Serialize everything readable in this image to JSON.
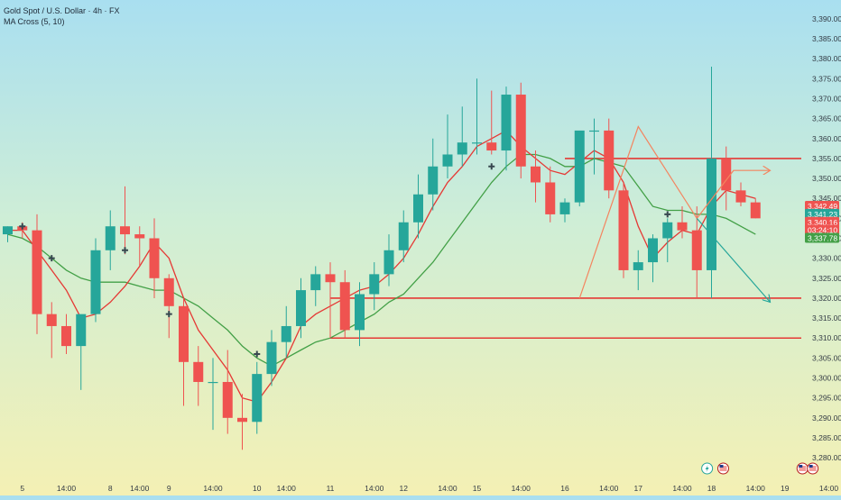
{
  "header": {
    "symbol_line": "Gold Spot / U.S. Dollar · 4h · FX",
    "indicator_line": "MA Cross (5, 10)"
  },
  "colors": {
    "bull": "#26a69a",
    "bear": "#ef5350",
    "ma_fast": "#e53935",
    "ma_slow": "#43a047",
    "level_line": "#e53935",
    "projection_up": "#f4845f",
    "projection_down": "#26a69a",
    "cross_marker": "#37474f",
    "axis_text": "#333b45"
  },
  "chart_data": {
    "type": "candlestick",
    "title": "Gold Spot / U.S. Dollar · 4h · FX",
    "indicator": "MA Cross (5, 10)",
    "ylim": [
      3278,
      3392
    ],
    "grid": false,
    "y_ticks": [
      3390,
      3385,
      3380,
      3375,
      3370,
      3365,
      3360,
      3355,
      3350,
      3345,
      3340,
      3335,
      3330,
      3325,
      3320,
      3315,
      3310,
      3305,
      3300,
      3295,
      3290,
      3285,
      3280
    ],
    "y_tick_labels": [
      "3,390.00",
      "3,385.00",
      "3,380.00",
      "3,375.00",
      "3,370.00",
      "3,365.00",
      "3,360.00",
      "3,355.00",
      "3,350.00",
      "3,345.00",
      "3,340.00",
      "3,335.00",
      "3,330.00",
      "3,325.00",
      "3,320.00",
      "3,315.00",
      "3,310.00",
      "3,305.00",
      "3,300.00",
      "3,295.00",
      "3,290.00",
      "3,285.00",
      "3,280.00"
    ],
    "x_labels": [
      {
        "i": 1,
        "label": "5"
      },
      {
        "i": 4,
        "label": "14:00"
      },
      {
        "i": 7,
        "label": "8"
      },
      {
        "i": 9,
        "label": "14:00"
      },
      {
        "i": 11,
        "label": "9"
      },
      {
        "i": 14,
        "label": "14:00"
      },
      {
        "i": 17,
        "label": "10"
      },
      {
        "i": 19,
        "label": "14:00"
      },
      {
        "i": 22,
        "label": "11"
      },
      {
        "i": 25,
        "label": "14:00"
      },
      {
        "i": 27,
        "label": "12"
      },
      {
        "i": 30,
        "label": "14:00"
      },
      {
        "i": 32,
        "label": "15"
      },
      {
        "i": 35,
        "label": "14:00"
      },
      {
        "i": 38,
        "label": "16"
      },
      {
        "i": 41,
        "label": "14:00"
      },
      {
        "i": 43,
        "label": "17"
      },
      {
        "i": 46,
        "label": "14:00"
      },
      {
        "i": 48,
        "label": "18"
      },
      {
        "i": 51,
        "label": "14:00"
      },
      {
        "i": 53,
        "label": "19"
      },
      {
        "i": 56,
        "label": "14:00"
      }
    ],
    "candles": [
      {
        "o": 3336,
        "h": 3338,
        "l": 3334,
        "c": 3338
      },
      {
        "o": 3338,
        "h": 3339,
        "l": 3335,
        "c": 3337
      },
      {
        "o": 3337,
        "h": 3341,
        "l": 3311,
        "c": 3316
      },
      {
        "o": 3316,
        "h": 3319,
        "l": 3305,
        "c": 3313
      },
      {
        "o": 3313,
        "h": 3316,
        "l": 3306,
        "c": 3308
      },
      {
        "o": 3308,
        "h": 3315,
        "l": 3297,
        "c": 3316
      },
      {
        "o": 3316,
        "h": 3335,
        "l": 3314,
        "c": 3332
      },
      {
        "o": 3332,
        "h": 3342,
        "l": 3327,
        "c": 3338
      },
      {
        "o": 3338,
        "h": 3348,
        "l": 3331,
        "c": 3336
      },
      {
        "o": 3336,
        "h": 3338,
        "l": 3328,
        "c": 3335
      },
      {
        "o": 3335,
        "h": 3340,
        "l": 3320,
        "c": 3325
      },
      {
        "o": 3325,
        "h": 3326,
        "l": 3310,
        "c": 3318
      },
      {
        "o": 3318,
        "h": 3320,
        "l": 3293,
        "c": 3304
      },
      {
        "o": 3304,
        "h": 3308,
        "l": 3293,
        "c": 3299
      },
      {
        "o": 3299,
        "h": 3305,
        "l": 3287,
        "c": 3299
      },
      {
        "o": 3299,
        "h": 3307,
        "l": 3286,
        "c": 3290
      },
      {
        "o": 3290,
        "h": 3296,
        "l": 3282,
        "c": 3289
      },
      {
        "o": 3289,
        "h": 3304,
        "l": 3286,
        "c": 3301
      },
      {
        "o": 3301,
        "h": 3312,
        "l": 3298,
        "c": 3309
      },
      {
        "o": 3309,
        "h": 3318,
        "l": 3305,
        "c": 3313
      },
      {
        "o": 3313,
        "h": 3325,
        "l": 3310,
        "c": 3322
      },
      {
        "o": 3322,
        "h": 3328,
        "l": 3318,
        "c": 3326
      },
      {
        "o": 3326,
        "h": 3329,
        "l": 3310,
        "c": 3324
      },
      {
        "o": 3324,
        "h": 3327,
        "l": 3310,
        "c": 3312
      },
      {
        "o": 3312,
        "h": 3324,
        "l": 3308,
        "c": 3321
      },
      {
        "o": 3321,
        "h": 3329,
        "l": 3317,
        "c": 3326
      },
      {
        "o": 3326,
        "h": 3336,
        "l": 3323,
        "c": 3332
      },
      {
        "o": 3332,
        "h": 3342,
        "l": 3329,
        "c": 3339
      },
      {
        "o": 3339,
        "h": 3351,
        "l": 3335,
        "c": 3346
      },
      {
        "o": 3346,
        "h": 3360,
        "l": 3342,
        "c": 3353
      },
      {
        "o": 3353,
        "h": 3366,
        "l": 3350,
        "c": 3356
      },
      {
        "o": 3356,
        "h": 3368,
        "l": 3353,
        "c": 3359
      },
      {
        "o": 3359,
        "h": 3375,
        "l": 3356,
        "c": 3359
      },
      {
        "o": 3359,
        "h": 3372,
        "l": 3356,
        "c": 3357
      },
      {
        "o": 3357,
        "h": 3373,
        "l": 3352,
        "c": 3371
      },
      {
        "o": 3371,
        "h": 3374,
        "l": 3350,
        "c": 3353
      },
      {
        "o": 3353,
        "h": 3357,
        "l": 3344,
        "c": 3349
      },
      {
        "o": 3349,
        "h": 3353,
        "l": 3339,
        "c": 3341
      },
      {
        "o": 3341,
        "h": 3345,
        "l": 3339,
        "c": 3344
      },
      {
        "o": 3344,
        "h": 3361,
        "l": 3343,
        "c": 3362
      },
      {
        "o": 3362,
        "h": 3365,
        "l": 3351,
        "c": 3362
      },
      {
        "o": 3362,
        "h": 3365,
        "l": 3345,
        "c": 3347
      },
      {
        "o": 3347,
        "h": 3349,
        "l": 3325,
        "c": 3327
      },
      {
        "o": 3327,
        "h": 3332,
        "l": 3322,
        "c": 3329
      },
      {
        "o": 3329,
        "h": 3336,
        "l": 3324,
        "c": 3335
      },
      {
        "o": 3335,
        "h": 3340,
        "l": 3329,
        "c": 3339
      },
      {
        "o": 3339,
        "h": 3343,
        "l": 3335,
        "c": 3337
      },
      {
        "o": 3337,
        "h": 3343,
        "l": 3320,
        "c": 3327
      },
      {
        "o": 3327,
        "h": 3378,
        "l": 3320,
        "c": 3355
      },
      {
        "o": 3355,
        "h": 3358,
        "l": 3342,
        "c": 3347
      },
      {
        "o": 3347,
        "h": 3349,
        "l": 3343,
        "c": 3344
      },
      {
        "o": 3344,
        "h": 3345,
        "l": 3340,
        "c": 3340
      }
    ],
    "ma_fast": [
      3337,
      3337,
      3332,
      3327,
      3322,
      3315,
      3316,
      3319,
      3323,
      3328,
      3334,
      3330,
      3320,
      3312,
      3307,
      3302,
      3295,
      3294,
      3299,
      3305,
      3313,
      3316,
      3318,
      3320,
      3322,
      3323,
      3326,
      3330,
      3336,
      3343,
      3349,
      3353,
      3358,
      3360,
      3362,
      3358,
      3355,
      3352,
      3351,
      3354,
      3357,
      3355,
      3349,
      3338,
      3330,
      3334,
      3337,
      3336,
      3343,
      3347,
      3346,
      3345
    ],
    "ma_slow": [
      3336,
      3335,
      3333,
      3330,
      3327,
      3325,
      3324,
      3324,
      3324,
      3323,
      3322,
      3322,
      3320,
      3318,
      3315,
      3312,
      3308,
      3305,
      3303,
      3305,
      3307,
      3309,
      3310,
      3312,
      3314,
      3316,
      3319,
      3321,
      3325,
      3329,
      3334,
      3339,
      3344,
      3349,
      3353,
      3356,
      3356,
      3355,
      3353,
      3353,
      3355,
      3354,
      3353,
      3348,
      3343,
      3342,
      3342,
      3341,
      3341,
      3340,
      3338,
      3336
    ],
    "cross_markers": [
      {
        "i": 1,
        "price": 3338
      },
      {
        "i": 3,
        "price": 3330
      },
      {
        "i": 8,
        "price": 3332
      },
      {
        "i": 11,
        "price": 3316
      },
      {
        "i": 17,
        "price": 3306
      },
      {
        "i": 33,
        "price": 3353
      },
      {
        "i": 45,
        "price": 3341
      }
    ],
    "horizontal_levels": [
      {
        "price": 3355,
        "from_i": 38
      },
      {
        "price": 3320,
        "from_i": 22
      },
      {
        "price": 3310,
        "from_i": 22
      }
    ],
    "pattern_lines": [
      {
        "color_key": "projection_up",
        "points": [
          {
            "i": 39,
            "p": 3320
          },
          {
            "i": 43,
            "p": 3363
          },
          {
            "i": 47,
            "p": 3340
          },
          {
            "i": 49.5,
            "p": 3352
          },
          {
            "i": 52,
            "p": 3352
          }
        ]
      },
      {
        "color_key": "projection_down",
        "points": [
          {
            "i": 47,
            "p": 3340
          },
          {
            "i": 52,
            "p": 3319
          }
        ]
      }
    ],
    "price_labels": [
      {
        "text": "3,342.49",
        "price": 3343,
        "color": "#ef5350"
      },
      {
        "text": "3,341.23",
        "price": 3341,
        "color": "#26a69a"
      },
      {
        "text": "3,340.16",
        "price": 3339,
        "color": "#ef5350"
      },
      {
        "text": "03:24:10",
        "price": 3337,
        "color": "#ef5350"
      },
      {
        "text": "3,337.78",
        "price": 3335,
        "color": "#43a047"
      }
    ],
    "event_markers": [
      {
        "i": 47.7,
        "icon": "lightning-icon"
      },
      {
        "i": 48.8,
        "icon": "us-flag-icon"
      },
      {
        "i": 54.2,
        "icon": "us-flag-icon"
      },
      {
        "i": 54.9,
        "icon": "us-flag-icon"
      }
    ]
  }
}
